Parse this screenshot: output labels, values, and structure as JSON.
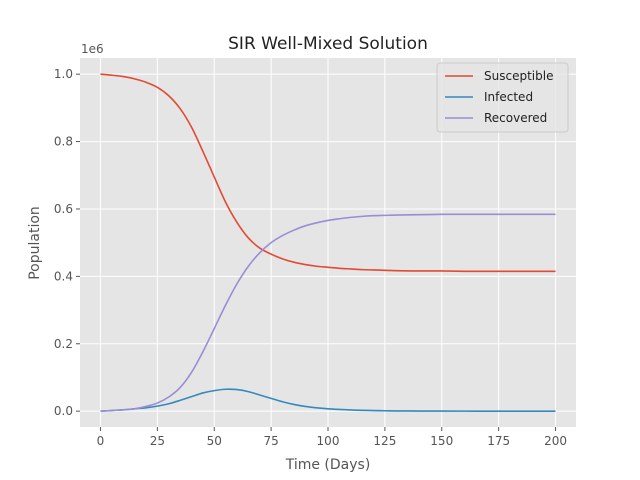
{
  "chart_data": {
    "type": "line",
    "title": "SIR Well-Mixed Solution",
    "xlabel": "Time (Days)",
    "ylabel": "Population",
    "y_scale_label": "1e6",
    "xlim": [
      -9,
      209
    ],
    "ylim": [
      -47000,
      1048000
    ],
    "x_ticks": [
      0,
      25,
      50,
      75,
      100,
      125,
      150,
      175,
      200
    ],
    "x_tick_labels": [
      "0",
      "25",
      "50",
      "75",
      "100",
      "125",
      "150",
      "175",
      "200"
    ],
    "y_ticks": [
      0,
      200000,
      400000,
      600000,
      800000,
      1000000
    ],
    "y_tick_labels": [
      "0.0",
      "0.2",
      "0.4",
      "0.6",
      "0.8",
      "1.0"
    ],
    "grid": true,
    "legend_position": "top-right",
    "x": [
      0,
      5,
      10,
      15,
      20,
      25,
      30,
      35,
      40,
      45,
      50,
      55,
      60,
      65,
      70,
      75,
      80,
      85,
      90,
      95,
      100,
      105,
      110,
      115,
      120,
      125,
      130,
      140,
      150,
      160,
      170,
      180,
      190,
      200
    ],
    "series": [
      {
        "name": "Susceptible",
        "color": "#E24A33",
        "values": [
          1000000,
          997000,
          993000,
          986000,
          976000,
          961000,
          936000,
          898000,
          843000,
          771000,
          695000,
          620000,
          560000,
          514000,
          484000,
          466000,
          452000,
          442000,
          435000,
          430000,
          427000,
          424000,
          422000,
          420000,
          419000,
          418000,
          417000,
          416000,
          416000,
          415000,
          415000,
          415000,
          415000,
          415000
        ]
      },
      {
        "name": "Infected",
        "color": "#348ABD",
        "values": [
          0,
          2000,
          4000,
          7000,
          10000,
          15000,
          22000,
          32000,
          43000,
          54000,
          61000,
          65000,
          64000,
          58000,
          48000,
          38000,
          28000,
          20000,
          14000,
          10000,
          7000,
          5000,
          3500,
          2500,
          1800,
          1200,
          800,
          400,
          200,
          100,
          50,
          20,
          10,
          5
        ]
      },
      {
        "name": "Recovered",
        "color": "#988ED5",
        "values": [
          0,
          2000,
          4000,
          7000,
          14000,
          24000,
          42000,
          70000,
          115000,
          176000,
          245000,
          315000,
          378000,
          430000,
          470000,
          500000,
          521000,
          537000,
          550000,
          559000,
          566000,
          571000,
          575000,
          578000,
          580000,
          581000,
          582000,
          583000,
          584000,
          584000,
          584000,
          584000,
          584000,
          584000
        ]
      }
    ]
  },
  "colors": {
    "plot_background": "#E5E5E5",
    "grid": "#FFFFFF"
  }
}
